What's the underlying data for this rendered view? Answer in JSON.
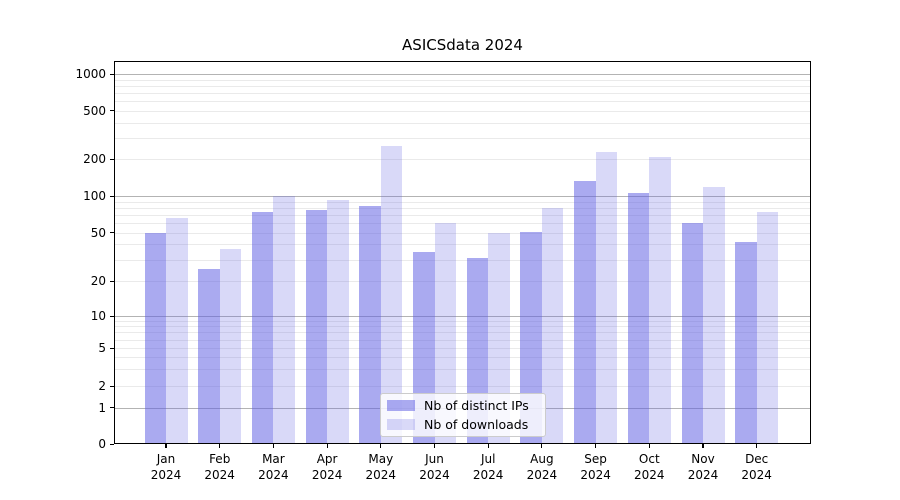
{
  "title": "ASICSdata 2024",
  "chart_data": {
    "type": "bar",
    "title": "ASICSdata 2024",
    "categories": [
      "Jan 2024",
      "Feb 2024",
      "Mar 2024",
      "Apr 2024",
      "May 2024",
      "Jun 2024",
      "Jul 2024",
      "Aug 2024",
      "Sep 2024",
      "Oct 2024",
      "Nov 2024",
      "Dec 2024"
    ],
    "series": [
      {
        "name": "Nb of distinct IPs",
        "color": "rgba(92,92,226,0.52)",
        "values": [
          50,
          25,
          74,
          77,
          83,
          35,
          31,
          51,
          133,
          105,
          60,
          42
        ]
      },
      {
        "name": "Nb of downloads",
        "color": "rgba(97,97,226,0.24)",
        "values": [
          66,
          37,
          100,
          93,
          255,
          60,
          50,
          79,
          230,
          207,
          119,
          74
        ]
      }
    ],
    "yscale": "symlog",
    "yticks": [
      0,
      1,
      2,
      5,
      10,
      20,
      50,
      100,
      200,
      500,
      1000
    ],
    "ytick_labels": [
      "0",
      "1",
      "2",
      "5",
      "10",
      "20",
      "50",
      "100",
      "200",
      "500",
      "1000"
    ],
    "ylim": [
      0,
      1300
    ],
    "xlabel": "",
    "ylabel": "",
    "grid": true,
    "legend_position": "lower center"
  },
  "colors": {
    "background": "#ffffff",
    "grid_major": "#b3b3b3",
    "grid_minor": "#eaeaea",
    "spine": "#000000",
    "text": "#000000",
    "legend_bg": "rgba(255,255,255,0.8)",
    "legend_border": "#cccccc"
  }
}
